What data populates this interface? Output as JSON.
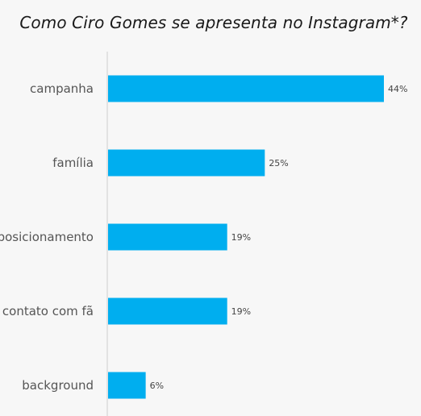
{
  "chart_data": {
    "type": "bar",
    "orientation": "horizontal",
    "title": "Como Ciro Gomes se apresenta no Instagram*?",
    "categories": [
      "campanha",
      "família",
      "posicionamento",
      "contato com fã",
      "background"
    ],
    "values": [
      44,
      25,
      19,
      19,
      6
    ],
    "value_labels": [
      "44%",
      "25%",
      "19%",
      "19%",
      "6%"
    ],
    "unit": "%",
    "xlim": [
      0,
      50
    ],
    "grid": false,
    "bar_color": "#00aeef",
    "axis_color": "#cccccc"
  }
}
